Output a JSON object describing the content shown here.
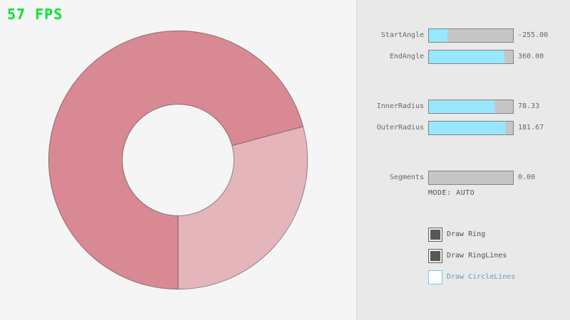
{
  "fps": {
    "text": "57 FPS",
    "color": "#00e430"
  },
  "ring": {
    "overlap_color": "#d98994",
    "single_color": "#e5b5bc",
    "line_color": "rgba(0,0,0,0.4)"
  },
  "panel": {
    "slider_fill_color": "#97e8ff",
    "sliders": [
      {
        "label": "StartAngle",
        "value": "-255.00",
        "fill_pct": 21.67
      },
      {
        "label": "EndAngle",
        "value": "360.00",
        "fill_pct": 90.0
      },
      {
        "label": "InnerRadius",
        "value": "78.33",
        "fill_pct": 78.33
      },
      {
        "label": "OuterRadius",
        "value": "181.67",
        "fill_pct": 90.84
      },
      {
        "label": "Segments",
        "value": "0.00",
        "fill_pct": 0
      }
    ],
    "mode_text": "MODE: AUTO",
    "checkboxes": [
      {
        "label": "Draw Ring",
        "checked": true,
        "label_color": "#4f4f4f"
      },
      {
        "label": "Draw RingLines",
        "checked": true,
        "label_color": "#4f4f4f"
      },
      {
        "label": "Draw CircleLines",
        "checked": false,
        "label_color": "#6c9bbc"
      }
    ]
  }
}
